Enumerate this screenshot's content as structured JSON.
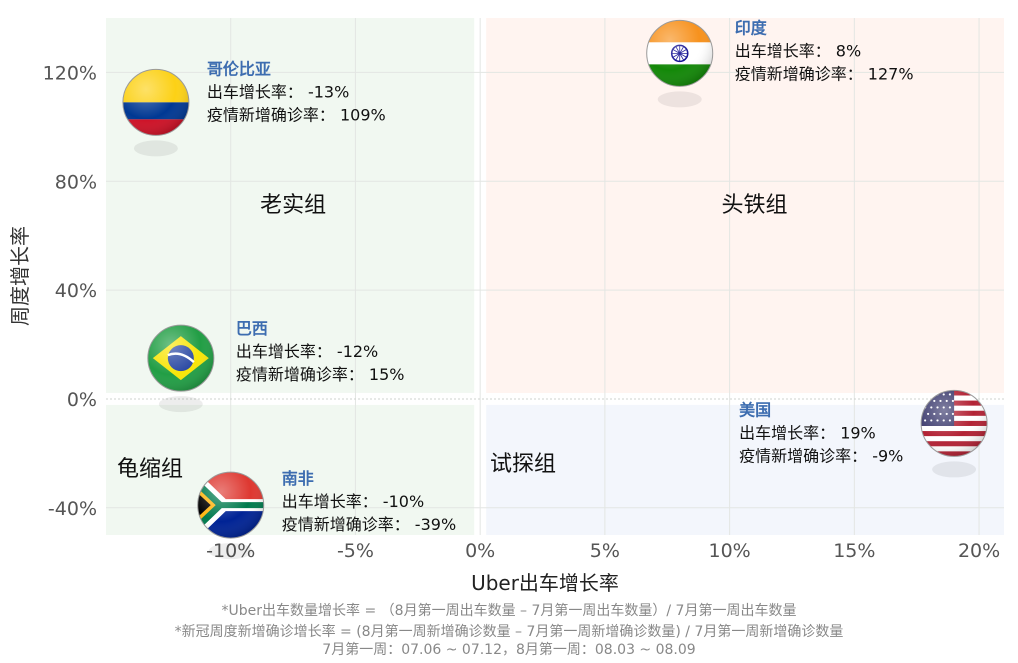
{
  "chart_data": {
    "type": "scatter",
    "title": "",
    "xlabel": "Uber出车增长率",
    "ylabel": "周度增长率",
    "xlim": [
      -15,
      21
    ],
    "ylim": [
      -50,
      140
    ],
    "x_ticks": [
      "-10%",
      "-5%",
      "0%",
      "5%",
      "10%",
      "15%",
      "20%"
    ],
    "y_ticks": [
      "120%",
      "80%",
      "40%",
      "0%",
      "-40%"
    ],
    "quadrants": {
      "top_left": "老实组",
      "top_right": "头铁组",
      "bottom_left": "龟缩组",
      "bottom_right": "试探组"
    },
    "quadrant_colors": {
      "top_left": "#f1f8f1",
      "top_right": "#fff4f0",
      "bottom_left": "#f1f8f1",
      "bottom_right": "#f3f6fc"
    },
    "metric_labels": {
      "uber": "出车增长率：",
      "covid": "疫情新增确诊率："
    },
    "points": [
      {
        "name": "哥伦比亚",
        "flag": "colombia-flag",
        "x": -13,
        "y": 109,
        "uber_label": "-13%",
        "covid_label": "109%"
      },
      {
        "name": "印度",
        "flag": "india-flag",
        "x": 8,
        "y": 127,
        "uber_label": "8%",
        "covid_label": "127%"
      },
      {
        "name": "巴西",
        "flag": "brazil-flag",
        "x": -12,
        "y": 15,
        "uber_label": "-12%",
        "covid_label": "15%"
      },
      {
        "name": "南非",
        "flag": "south-africa-flag",
        "x": -10,
        "y": -39,
        "uber_label": "-10%",
        "covid_label": "-39%"
      },
      {
        "name": "美国",
        "flag": "usa-flag",
        "x": 19,
        "y": -9,
        "uber_label": "19%",
        "covid_label": "-9%"
      }
    ]
  },
  "footnotes": [
    "*Uber出车数量增长率 = （8月第一周出车数量 – 7月第一周出车数量）/ 7月第一周出车数量",
    "*新冠周度新增确诊增长率 = (8月第一周新增确诊数量 – 7月第一周新增确诊数量) / 7月第一周新增确诊数量",
    "7月第一周：07.06 ~ 07.12，8月第一周：08.03 ~ 08.09"
  ]
}
